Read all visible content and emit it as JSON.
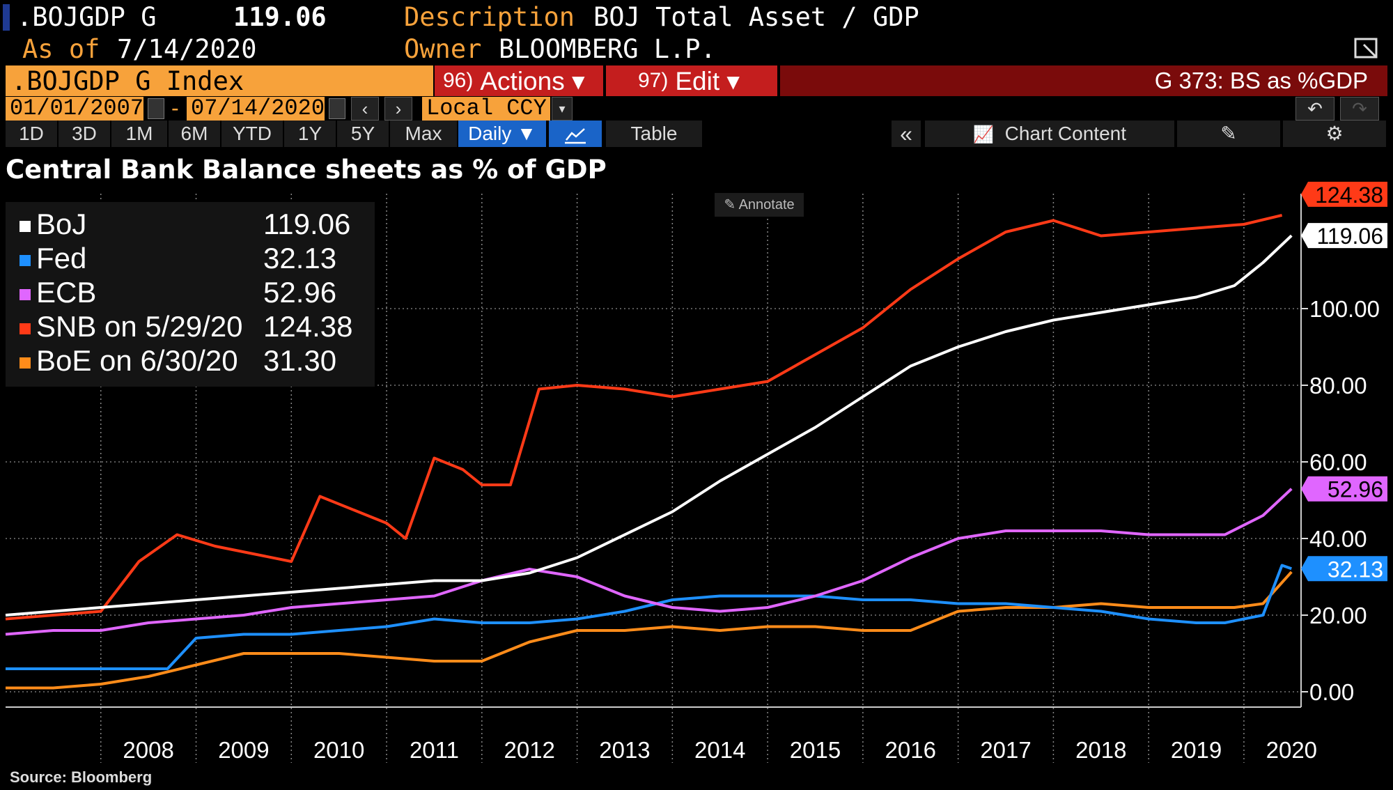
{
  "header": {
    "ticker": ".BOJGDP G",
    "last_value": "119.06",
    "description_label": "Description",
    "description": "BOJ Total Asset / GDP",
    "as_of_label": "As of",
    "as_of_date": "7/14/2020",
    "owner_label": "Owner",
    "owner": "BLOOMBERG L.P."
  },
  "toolbar": {
    "security": ".BOJGDP G Index",
    "actions_num": "96)",
    "actions_label": "Actions ▾",
    "edit_num": "97)",
    "edit_label": "Edit ▾",
    "function_title": "G 373: BS as %GDP",
    "start_date": "01/01/2007",
    "date_sep": "-",
    "end_date": "07/14/2020",
    "currency": "Local CCY",
    "ranges": [
      "1D",
      "3D",
      "1M",
      "6M",
      "YTD",
      "1Y",
      "5Y",
      "Max"
    ],
    "frequency": "Daily ▼",
    "table_label": "Table",
    "chart_content_label": "Chart Content"
  },
  "annotate_label": "Annotate",
  "source": "Source: Bloomberg",
  "colors": {
    "boj": "#ffffff",
    "fed": "#1e90ff",
    "ecb": "#e066ff",
    "snb": "#ff3a17",
    "boe": "#ff8c1a",
    "accent": "#f7a23b",
    "toolbar_red": "#c41e1e"
  },
  "chart_data": {
    "type": "line",
    "title": "Central Bank Balance sheets as % of GDP",
    "x_label": "",
    "y_label": "",
    "x_ticks": [
      "2008",
      "2009",
      "2010",
      "2011",
      "2012",
      "2013",
      "2014",
      "2015",
      "2016",
      "2017",
      "2018",
      "2019",
      "2020"
    ],
    "y_ticks": [
      "0.00",
      "20.00",
      "40.00",
      "60.00",
      "80.00",
      "100.00"
    ],
    "xlim": [
      2007.0,
      2020.6
    ],
    "ylim": [
      -4,
      130
    ],
    "grid": true,
    "legend_position": "top-left",
    "legend": [
      {
        "label": "BoJ",
        "value": "119.06"
      },
      {
        "label": "Fed",
        "value": "32.13"
      },
      {
        "label": "ECB",
        "value": "52.96"
      },
      {
        "label": "SNB on 5/29/20",
        "value": "124.38"
      },
      {
        "label": "BoE on 6/30/20",
        "value": "31.30"
      }
    ],
    "end_labels": [
      {
        "series": "SNB",
        "value": "124.38"
      },
      {
        "series": "BoJ",
        "value": "119.06"
      },
      {
        "series": "ECB",
        "value": "52.96"
      },
      {
        "series": "Fed",
        "value": "32.13"
      }
    ],
    "series": [
      {
        "name": "BoJ",
        "x": [
          2007.0,
          2007.5,
          2008.0,
          2008.5,
          2009.0,
          2009.5,
          2010.0,
          2010.5,
          2011.0,
          2011.5,
          2012.0,
          2012.5,
          2013.0,
          2013.5,
          2014.0,
          2014.5,
          2015.0,
          2015.5,
          2016.0,
          2016.5,
          2017.0,
          2017.5,
          2018.0,
          2018.5,
          2019.0,
          2019.5,
          2019.9,
          2020.2,
          2020.5
        ],
        "y": [
          20,
          21,
          22,
          23,
          24,
          25,
          26,
          27,
          28,
          29,
          29,
          31,
          35,
          41,
          47,
          55,
          62,
          69,
          77,
          85,
          90,
          94,
          97,
          99,
          101,
          103,
          106,
          112,
          119.06
        ]
      },
      {
        "name": "Fed",
        "x": [
          2007.0,
          2008.7,
          2009.0,
          2009.5,
          2010.0,
          2010.5,
          2011.0,
          2011.5,
          2012.0,
          2012.5,
          2013.0,
          2013.5,
          2014.0,
          2014.5,
          2015.0,
          2015.5,
          2016.0,
          2016.5,
          2017.0,
          2017.5,
          2018.0,
          2018.5,
          2019.0,
          2019.5,
          2019.8,
          2020.0,
          2020.2,
          2020.4,
          2020.5
        ],
        "y": [
          6,
          6,
          14,
          15,
          15,
          16,
          17,
          19,
          18,
          18,
          19,
          21,
          24,
          25,
          25,
          25,
          24,
          24,
          23,
          23,
          22,
          21,
          19,
          18,
          18,
          19,
          20,
          33,
          32.13
        ]
      },
      {
        "name": "ECB",
        "x": [
          2007.0,
          2007.5,
          2008.0,
          2008.5,
          2009.0,
          2009.5,
          2010.0,
          2010.5,
          2011.0,
          2011.5,
          2012.0,
          2012.5,
          2013.0,
          2013.5,
          2014.0,
          2014.5,
          2015.0,
          2015.5,
          2016.0,
          2016.5,
          2017.0,
          2017.5,
          2018.0,
          2018.5,
          2019.0,
          2019.5,
          2019.8,
          2020.2,
          2020.5
        ],
        "y": [
          15,
          16,
          16,
          18,
          19,
          20,
          22,
          23,
          24,
          25,
          29,
          32,
          30,
          25,
          22,
          21,
          22,
          25,
          29,
          35,
          40,
          42,
          42,
          42,
          41,
          41,
          41,
          46,
          52.96
        ]
      },
      {
        "name": "SNB",
        "x": [
          2007.0,
          2007.5,
          2008.0,
          2008.4,
          2008.8,
          2009.2,
          2009.6,
          2010.0,
          2010.3,
          2010.8,
          2011.0,
          2011.2,
          2011.5,
          2011.8,
          2012.0,
          2012.3,
          2012.6,
          2013.0,
          2013.5,
          2014.0,
          2014.5,
          2015.0,
          2015.5,
          2016.0,
          2016.5,
          2017.0,
          2017.5,
          2018.0,
          2018.5,
          2019.0,
          2019.5,
          2020.0,
          2020.4
        ],
        "y": [
          19,
          20,
          21,
          34,
          41,
          38,
          36,
          34,
          51,
          46,
          44,
          40,
          61,
          58,
          54,
          54,
          79,
          80,
          79,
          77,
          79,
          81,
          88,
          95,
          105,
          113,
          120,
          123,
          119,
          120,
          121,
          122,
          124.38
        ]
      },
      {
        "name": "BoE",
        "x": [
          2007.0,
          2007.5,
          2008.0,
          2008.5,
          2009.0,
          2009.5,
          2010.0,
          2010.5,
          2011.0,
          2011.5,
          2012.0,
          2012.5,
          2013.0,
          2013.5,
          2014.0,
          2014.5,
          2015.0,
          2015.5,
          2016.0,
          2016.5,
          2017.0,
          2017.5,
          2018.0,
          2018.5,
          2019.0,
          2019.5,
          2019.9,
          2020.2,
          2020.5
        ],
        "y": [
          1,
          1,
          2,
          4,
          7,
          10,
          10,
          10,
          9,
          8,
          8,
          13,
          16,
          16,
          17,
          16,
          17,
          17,
          16,
          16,
          21,
          22,
          22,
          23,
          22,
          22,
          22,
          23,
          31.3
        ]
      }
    ]
  }
}
